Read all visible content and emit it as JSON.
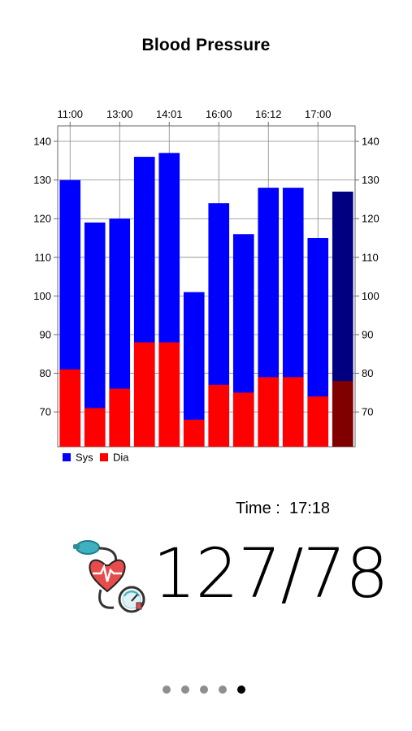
{
  "header": {
    "title": "Blood Pressure"
  },
  "chart_data": {
    "type": "bar",
    "stacked": false,
    "top_tick_labels": [
      "11:00",
      "13:00",
      "14:01",
      "16:00",
      "16:12",
      "17:00"
    ],
    "series": [
      {
        "name": "Sys",
        "values": [
          130,
          119,
          120,
          136,
          137,
          101,
          124,
          116,
          128,
          128,
          115,
          127
        ],
        "color": "#0000ff",
        "selected_color": "#000080"
      },
      {
        "name": "Dia",
        "values": [
          81,
          71,
          76,
          88,
          88,
          68,
          77,
          75,
          79,
          79,
          74,
          78
        ],
        "color": "#ff0000",
        "selected_color": "#800000"
      }
    ],
    "selected_index": 11,
    "ylim": [
      61,
      144
    ],
    "y_ticks": [
      70,
      80,
      90,
      100,
      110,
      120,
      130,
      140
    ],
    "y_tick_labels": [
      "70",
      "80",
      "90",
      "100",
      "110",
      "120",
      "130",
      "140"
    ],
    "grid": true,
    "legend": "bottom-left"
  },
  "reading": {
    "time_label": "Time :",
    "time_value": "17:18",
    "value": "127/78"
  },
  "pager": {
    "count": 5,
    "active_index": 4
  },
  "icons": {
    "bp_monitor": "blood-pressure-monitor-icon"
  }
}
